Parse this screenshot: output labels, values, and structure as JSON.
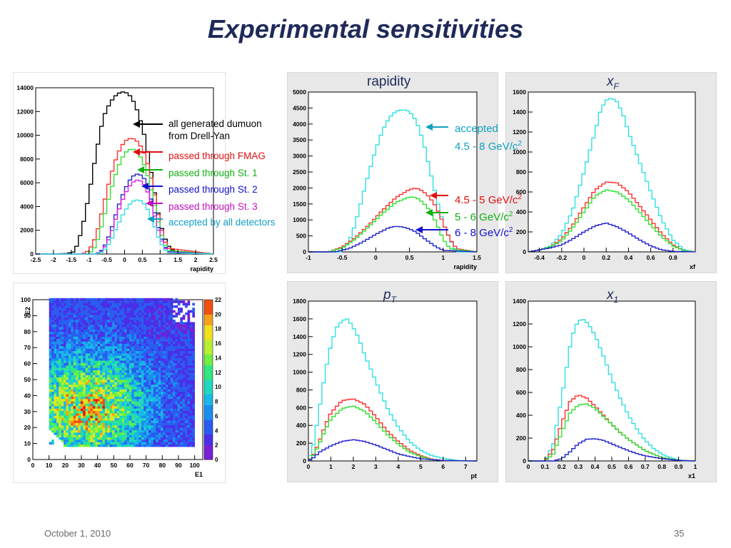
{
  "slide": {
    "title": "Experimental sensitivities",
    "date": "October 1, 2010",
    "page_number": "35"
  },
  "annotations": {
    "left": [
      {
        "text": "all generated dumuon",
        "color": "#000000"
      },
      {
        "text": "from Drell-Yan",
        "color": "#000000"
      },
      {
        "text": "passed through FMAG",
        "color": "#e01010"
      },
      {
        "text": "passed through St. 1",
        "color": "#10b010"
      },
      {
        "text": "passed through St. 2",
        "color": "#1010d0"
      },
      {
        "text": "passed through St. 3",
        "color": "#c010c0"
      },
      {
        "text": "accepted by all detectors",
        "color": "#10a0c0"
      }
    ],
    "right": [
      {
        "text": "accepted",
        "color": "#10a0c0"
      },
      {
        "text": "4.5 - 8 GeV/c",
        "sup": "2",
        "color": "#10a0c0"
      },
      {
        "text": "4.5 - 5 GeV/c",
        "sup": "2",
        "color": "#e01010"
      },
      {
        "text": "5 - 6 GeV/c",
        "sup": "2",
        "color": "#10b010"
      },
      {
        "text": "6 - 8 GeV/c",
        "sup": "2",
        "color": "#1010d0"
      }
    ]
  },
  "headers": {
    "rapidity": "rapidity",
    "xf_main": "x",
    "xf_sub": "F",
    "pt_main": "p",
    "pt_sub": "T",
    "x1_main": "x",
    "x1_sub": "1"
  },
  "colors": {
    "black": "#000000",
    "red": "#ff3030",
    "green": "#30e030",
    "blue": "#2020d0",
    "magenta": "#e020e0",
    "cyan": "#30e0e0",
    "frame_bg": "#e8e8e8"
  },
  "chart_data": [
    {
      "id": "rap-all",
      "type": "line",
      "xlabel": "rapidity",
      "xlim": [
        -2.5,
        2.5
      ],
      "ylim": [
        0,
        14000
      ],
      "xticks": [
        "-2.5",
        "-2",
        "-1.5",
        "-1",
        "-0.5",
        "0",
        "0.5",
        "1",
        "1.5",
        "2",
        "2.5"
      ],
      "yticks": [
        "0",
        "2000",
        "4000",
        "6000",
        "8000",
        "10000",
        "12000",
        "14000"
      ],
      "series": [
        {
          "color": "#000000",
          "x": [
            -2.5,
            -2.0,
            -1.6,
            -1.4,
            -1.2,
            -1.0,
            -0.8,
            -0.6,
            -0.4,
            -0.2,
            0.0,
            0.2,
            0.4,
            0.6,
            0.8,
            1.0,
            1.2,
            1.4,
            1.6,
            2.0,
            2.5
          ],
          "values": [
            0,
            0,
            50,
            200,
            2000,
            5000,
            8500,
            11500,
            12800,
            13500,
            13700,
            13200,
            11800,
            9500,
            6000,
            2600,
            800,
            200,
            50,
            0,
            0
          ]
        },
        {
          "color": "#ff3030",
          "x": [
            -2.5,
            -1.2,
            -1.0,
            -0.8,
            -0.6,
            -0.4,
            -0.2,
            0.0,
            0.2,
            0.4,
            0.6,
            0.8,
            1.0,
            1.2,
            2.5
          ],
          "values": [
            0,
            0,
            300,
            1500,
            4000,
            6500,
            8400,
            9500,
            9800,
            9400,
            8200,
            5800,
            2500,
            500,
            0
          ]
        },
        {
          "color": "#30e030",
          "x": [
            -2.5,
            -1.0,
            -0.8,
            -0.6,
            -0.4,
            -0.2,
            0.0,
            0.2,
            0.4,
            0.6,
            0.8,
            1.0,
            1.2,
            2.5
          ],
          "values": [
            0,
            0,
            700,
            2800,
            5200,
            7200,
            8500,
            8900,
            8500,
            7200,
            4800,
            2000,
            300,
            0
          ]
        },
        {
          "color": "#2020d0",
          "x": [
            -2.5,
            -0.8,
            -0.6,
            -0.4,
            -0.2,
            0.0,
            0.2,
            0.4,
            0.6,
            0.8,
            1.0,
            1.2,
            2.5
          ],
          "values": [
            0,
            0,
            400,
            1800,
            3800,
            5400,
            6500,
            6800,
            6200,
            4100,
            1600,
            200,
            0
          ]
        },
        {
          "color": "#e020e0",
          "x": [
            -2.5,
            -0.8,
            -0.6,
            -0.4,
            -0.2,
            0.0,
            0.2,
            0.4,
            0.6,
            0.8,
            1.0,
            1.2,
            2.5
          ],
          "values": [
            0,
            0,
            300,
            1500,
            3400,
            5000,
            6000,
            6300,
            5700,
            3800,
            1400,
            150,
            0
          ]
        },
        {
          "color": "#30e0e0",
          "x": [
            -2.5,
            -0.8,
            -0.6,
            -0.4,
            -0.2,
            0.0,
            0.2,
            0.4,
            0.6,
            0.8,
            1.0,
            1.2,
            2.5
          ],
          "values": [
            0,
            0,
            200,
            1000,
            2400,
            3600,
            4400,
            4600,
            4100,
            2700,
            1000,
            100,
            0
          ]
        }
      ]
    },
    {
      "id": "rap-mass",
      "type": "line",
      "xlabel": "rapidity",
      "xlim": [
        -1,
        1.5
      ],
      "ylim": [
        0,
        5000
      ],
      "xticks": [
        "-1",
        "-0.5",
        "0",
        "0.5",
        "1",
        "1.5"
      ],
      "yticks": [
        "0",
        "500",
        "1000",
        "1500",
        "2000",
        "2500",
        "3000",
        "3500",
        "4000",
        "4500",
        "5000"
      ],
      "series": [
        {
          "color": "#30e0e0",
          "x": [
            -1.0,
            -0.5,
            -0.4,
            -0.3,
            -0.2,
            -0.1,
            0.0,
            0.1,
            0.2,
            0.3,
            0.4,
            0.5,
            0.6,
            0.7,
            0.8,
            0.9,
            1.0,
            1.1,
            1.2,
            1.5
          ],
          "values": [
            0,
            0,
            300,
            900,
            1700,
            2500,
            3200,
            3800,
            4200,
            4400,
            4450,
            4400,
            4100,
            3500,
            2600,
            1700,
            900,
            400,
            0,
            0
          ]
        },
        {
          "color": "#ff3030",
          "x": [
            -1.0,
            -0.7,
            -0.5,
            -0.3,
            -0.1,
            0.1,
            0.3,
            0.5,
            0.6,
            0.7,
            0.8,
            0.9,
            1.0,
            1.1,
            1.2,
            1.5
          ],
          "values": [
            0,
            0,
            150,
            450,
            850,
            1300,
            1700,
            1950,
            2000,
            1900,
            1700,
            1400,
            900,
            400,
            100,
            0
          ]
        },
        {
          "color": "#30e030",
          "x": [
            -1.0,
            -0.7,
            -0.5,
            -0.3,
            -0.1,
            0.1,
            0.3,
            0.5,
            0.6,
            0.7,
            0.8,
            0.9,
            1.0,
            1.1,
            1.5
          ],
          "values": [
            0,
            0,
            120,
            400,
            800,
            1200,
            1550,
            1720,
            1700,
            1550,
            1300,
            900,
            400,
            100,
            0
          ]
        },
        {
          "color": "#2020d0",
          "x": [
            -1.0,
            -0.6,
            -0.4,
            -0.2,
            0.0,
            0.2,
            0.3,
            0.4,
            0.5,
            0.6,
            0.7,
            0.8,
            0.9,
            1.0,
            1.5
          ],
          "values": [
            0,
            0,
            100,
            300,
            550,
            760,
            800,
            780,
            720,
            620,
            450,
            300,
            150,
            50,
            0
          ]
        }
      ]
    },
    {
      "id": "xf-mass",
      "type": "line",
      "xlabel": "xf",
      "xlim": [
        -0.5,
        1.0
      ],
      "ylim": [
        0,
        1600
      ],
      "xticks": [
        "-0.4",
        "-0.2",
        "0",
        "0.2",
        "0.4",
        "0.6",
        "0.8"
      ],
      "yticks": [
        "0",
        "200",
        "400",
        "600",
        "800",
        "1000",
        "1200",
        "1400",
        "1600"
      ],
      "series": [
        {
          "color": "#30e0e0",
          "x": [
            -0.5,
            -0.4,
            -0.3,
            -0.2,
            -0.1,
            0.0,
            0.1,
            0.15,
            0.2,
            0.25,
            0.3,
            0.35,
            0.4,
            0.5,
            0.6,
            0.7,
            0.8,
            0.9,
            1.0
          ],
          "values": [
            0,
            20,
            60,
            180,
            420,
            800,
            1200,
            1420,
            1520,
            1540,
            1500,
            1380,
            1200,
            900,
            600,
            320,
            120,
            20,
            0
          ]
        },
        {
          "color": "#ff3030",
          "x": [
            -0.5,
            -0.4,
            -0.3,
            -0.2,
            -0.1,
            0.0,
            0.1,
            0.2,
            0.3,
            0.4,
            0.5,
            0.6,
            0.7,
            0.8,
            0.9,
            1.0
          ],
          "values": [
            0,
            20,
            50,
            130,
            270,
            450,
            620,
            700,
            690,
            600,
            460,
            320,
            180,
            70,
            10,
            0
          ]
        },
        {
          "color": "#30e030",
          "x": [
            -0.5,
            -0.4,
            -0.3,
            -0.2,
            -0.1,
            0.0,
            0.1,
            0.2,
            0.3,
            0.4,
            0.5,
            0.6,
            0.7,
            0.8,
            0.9,
            1.0
          ],
          "values": [
            0,
            20,
            50,
            110,
            240,
            400,
            560,
            620,
            600,
            520,
            400,
            270,
            150,
            60,
            10,
            0
          ]
        },
        {
          "color": "#2020d0",
          "x": [
            -0.5,
            -0.4,
            -0.3,
            -0.2,
            -0.1,
            0.0,
            0.1,
            0.2,
            0.3,
            0.4,
            0.5,
            0.6,
            0.7,
            0.8,
            1.0
          ],
          "values": [
            0,
            20,
            40,
            70,
            130,
            200,
            260,
            290,
            250,
            190,
            120,
            60,
            20,
            5,
            0
          ]
        }
      ]
    },
    {
      "id": "pt-mass",
      "type": "line",
      "xlabel": "pt",
      "xlim": [
        0,
        7.5
      ],
      "ylim": [
        0,
        1800
      ],
      "xticks": [
        "0",
        "1",
        "2",
        "3",
        "4",
        "5",
        "6",
        "7"
      ],
      "yticks": [
        "0",
        "200",
        "400",
        "600",
        "800",
        "1000",
        "1200",
        "1400",
        "1600",
        "1800"
      ],
      "series": [
        {
          "color": "#30e0e0",
          "x": [
            0,
            0.25,
            0.5,
            0.75,
            1.0,
            1.25,
            1.5,
            1.75,
            2.0,
            2.25,
            2.5,
            3.0,
            3.5,
            4.0,
            4.5,
            5.0,
            5.5,
            6.0,
            6.5,
            7.0,
            7.5
          ],
          "values": [
            0,
            200,
            600,
            1000,
            1300,
            1500,
            1580,
            1600,
            1500,
            1380,
            1200,
            900,
            600,
            380,
            220,
            120,
            60,
            30,
            10,
            0,
            0
          ]
        },
        {
          "color": "#ff3030",
          "x": [
            0,
            0.25,
            0.5,
            0.75,
            1.0,
            1.5,
            2.0,
            2.5,
            3.0,
            3.5,
            4.0,
            4.5,
            5.0,
            5.5,
            6.0,
            7.5
          ],
          "values": [
            0,
            80,
            230,
            400,
            540,
            680,
            700,
            640,
            500,
            340,
            220,
            120,
            60,
            20,
            5,
            0
          ]
        },
        {
          "color": "#30e030",
          "x": [
            0,
            0.25,
            0.5,
            0.75,
            1.0,
            1.5,
            2.0,
            2.5,
            3.0,
            3.5,
            4.0,
            4.5,
            5.0,
            5.5,
            6.0,
            7.5
          ],
          "values": [
            0,
            70,
            200,
            350,
            470,
            590,
            620,
            560,
            440,
            300,
            190,
            100,
            50,
            15,
            5,
            0
          ]
        },
        {
          "color": "#2020d0",
          "x": [
            0,
            0.25,
            0.5,
            1.0,
            1.5,
            2.0,
            2.5,
            3.0,
            3.5,
            4.0,
            4.5,
            5.0,
            6.0,
            7.5
          ],
          "values": [
            0,
            40,
            100,
            170,
            220,
            240,
            220,
            180,
            130,
            80,
            50,
            25,
            5,
            0
          ]
        }
      ]
    },
    {
      "id": "x1-mass",
      "type": "line",
      "xlabel": "x1",
      "xlim": [
        0,
        1.0
      ],
      "ylim": [
        0,
        1400
      ],
      "xticks": [
        "0",
        "0.1",
        "0.2",
        "0.3",
        "0.4",
        "0.5",
        "0.6",
        "0.7",
        "0.8",
        "0.9",
        "1"
      ],
      "yticks": [
        "0",
        "200",
        "400",
        "600",
        "800",
        "1000",
        "1200",
        "1400"
      ],
      "series": [
        {
          "color": "#30e0e0",
          "x": [
            0,
            0.1,
            0.15,
            0.2,
            0.25,
            0.28,
            0.32,
            0.36,
            0.4,
            0.45,
            0.5,
            0.55,
            0.6,
            0.65,
            0.7,
            0.75,
            0.8,
            0.85,
            0.9,
            0.95,
            1.0
          ],
          "values": [
            0,
            0,
            150,
            550,
            1000,
            1180,
            1250,
            1200,
            1100,
            920,
            720,
            550,
            400,
            280,
            180,
            110,
            60,
            30,
            10,
            0,
            0
          ]
        },
        {
          "color": "#ff3030",
          "x": [
            0,
            0.1,
            0.15,
            0.2,
            0.25,
            0.3,
            0.35,
            0.4,
            0.45,
            0.5,
            0.55,
            0.6,
            0.65,
            0.7,
            0.75,
            0.8,
            0.9,
            1.0
          ],
          "values": [
            0,
            0,
            100,
            330,
            520,
            580,
            550,
            480,
            400,
            320,
            250,
            190,
            140,
            90,
            60,
            30,
            5,
            0
          ]
        },
        {
          "color": "#30e030",
          "x": [
            0,
            0.1,
            0.15,
            0.2,
            0.25,
            0.3,
            0.35,
            0.4,
            0.45,
            0.5,
            0.55,
            0.6,
            0.65,
            0.7,
            0.75,
            0.8,
            0.9,
            1.0
          ],
          "values": [
            0,
            0,
            60,
            250,
            420,
            490,
            500,
            460,
            390,
            320,
            250,
            190,
            140,
            90,
            60,
            30,
            5,
            0
          ]
        },
        {
          "color": "#2020d0",
          "x": [
            0,
            0.15,
            0.2,
            0.25,
            0.3,
            0.35,
            0.4,
            0.45,
            0.5,
            0.55,
            0.6,
            0.65,
            0.7,
            0.8,
            0.9,
            1.0
          ],
          "values": [
            0,
            0,
            20,
            80,
            150,
            190,
            195,
            180,
            150,
            120,
            90,
            65,
            45,
            20,
            5,
            0
          ]
        }
      ]
    },
    {
      "id": "e1e2",
      "type": "heatmap",
      "xlabel": "E1",
      "ylabel": "E2",
      "xlim": [
        0,
        105
      ],
      "ylim": [
        0,
        100
      ],
      "xticks": [
        "0",
        "10",
        "20",
        "30",
        "40",
        "50",
        "60",
        "70",
        "80",
        "90",
        "100"
      ],
      "yticks": [
        "0",
        "10",
        "20",
        "30",
        "40",
        "50",
        "60",
        "70",
        "80",
        "90",
        "100"
      ],
      "zlim": [
        0,
        22
      ],
      "zticks": [
        "0",
        "2",
        "4",
        "6",
        "8",
        "10",
        "12",
        "14",
        "16",
        "18",
        "20",
        "22"
      ]
    }
  ]
}
